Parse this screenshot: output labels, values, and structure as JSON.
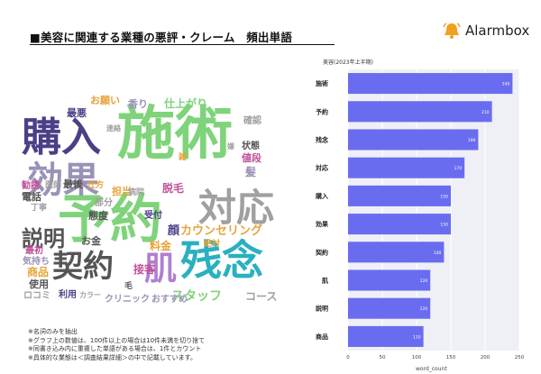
{
  "header": {
    "title": "■美容に関連する業種の悪評・クレーム　頻出単語",
    "brand_name": "Alarmbox",
    "brand_icon": "bell-icon",
    "brand_color": "#f0a020"
  },
  "wordcloud": {
    "words": [
      {
        "text": "施術",
        "color": "#7fd37a"
      },
      {
        "text": "予約",
        "color": "#7fd37a"
      },
      {
        "text": "購入",
        "color": "#4b3f86"
      },
      {
        "text": "効果",
        "color": "#9a92b6"
      },
      {
        "text": "対応",
        "color": "#a0a0a0"
      },
      {
        "text": "残念",
        "color": "#2ab0c0"
      },
      {
        "text": "契約",
        "color": "#555555"
      },
      {
        "text": "肌",
        "color": "#b07fd0"
      },
      {
        "text": "説明",
        "color": "#555555"
      },
      {
        "text": "カウンセリング",
        "color": "#e8a33a"
      },
      {
        "text": "スタッフ",
        "color": "#7fd37a"
      },
      {
        "text": "コース",
        "color": "#a0a0a0"
      },
      {
        "text": "クリニック",
        "color": "#9a92b6"
      },
      {
        "text": "おすすめ",
        "color": "#9a92b6"
      },
      {
        "text": "脱毛",
        "color": "#c0509a"
      },
      {
        "text": "料金",
        "color": "#e8a33a"
      },
      {
        "text": "接客",
        "color": "#c0509a"
      },
      {
        "text": "顔",
        "color": "#4b3f86"
      },
      {
        "text": "絶対",
        "color": "#e8a33a"
      },
      {
        "text": "受付",
        "color": "#4b3f86"
      },
      {
        "text": "態度",
        "color": "#555555"
      },
      {
        "text": "担当",
        "color": "#e8a33a"
      },
      {
        "text": "病院",
        "color": "#a0a0a0"
      },
      {
        "text": "部分",
        "color": "#a0a0a0"
      },
      {
        "text": "お金",
        "color": "#555555"
      },
      {
        "text": "毛",
        "color": "#555555"
      },
      {
        "text": "商品",
        "color": "#e8a33a"
      },
      {
        "text": "使用",
        "color": "#555555"
      },
      {
        "text": "ロコミ",
        "color": "#a0a0a0"
      },
      {
        "text": "利用",
        "color": "#4b3f86"
      },
      {
        "text": "カラー",
        "color": "#a0a0a0"
      },
      {
        "text": "気持ち",
        "color": "#9a92b6"
      },
      {
        "text": "最初",
        "color": "#c0509a"
      },
      {
        "text": "丁寧",
        "color": "#a0a0a0"
      },
      {
        "text": "電話",
        "color": "#555555"
      },
      {
        "text": "勧誘",
        "color": "#c0509a"
      },
      {
        "text": "医師",
        "color": "#a0a0a0"
      },
      {
        "text": "最後",
        "color": "#555555"
      },
      {
        "text": "仕方",
        "color": "#e8a33a"
      },
      {
        "text": "雑",
        "color": "#e8a33a"
      },
      {
        "text": "最悪",
        "color": "#4b3f86"
      },
      {
        "text": "お願い",
        "color": "#e8a33a"
      },
      {
        "text": "香り",
        "color": "#9a92b6"
      },
      {
        "text": "連絡",
        "color": "#a0a0a0"
      },
      {
        "text": "仕上がり",
        "color": "#7fd37a"
      },
      {
        "text": "確認",
        "color": "#a0a0a0"
      },
      {
        "text": "状態",
        "color": "#555555"
      },
      {
        "text": "値段",
        "color": "#c0509a"
      },
      {
        "text": "髪",
        "color": "#9a92b6"
      },
      {
        "text": "嫌",
        "color": "#a0a0a0"
      }
    ]
  },
  "notes": [
    "※名詞のみを抽出",
    "※グラフ上の数値は、100件以上の場合は10件未満を切り捨て",
    "※同書き込み内に重複した単語がある場合は、1件とカウント",
    "※具体的な業態は＜調査結果詳細＞の中で記載しています。"
  ],
  "chart_data": {
    "type": "bar",
    "orientation": "horizontal",
    "title": "美容(2023年上半期)",
    "xlabel": "word_count",
    "ylabel": "",
    "categories": [
      "施術",
      "予約",
      "残念",
      "対応",
      "購入",
      "効果",
      "契約",
      "肌",
      "説明",
      "商品"
    ],
    "values": [
      240,
      210,
      190,
      170,
      150,
      150,
      140,
      120,
      120,
      110
    ],
    "xlim": [
      0,
      250
    ],
    "xticks": [
      0,
      50,
      100,
      150,
      200,
      250
    ],
    "bar_color": "#6a6cf0",
    "grid": true
  }
}
